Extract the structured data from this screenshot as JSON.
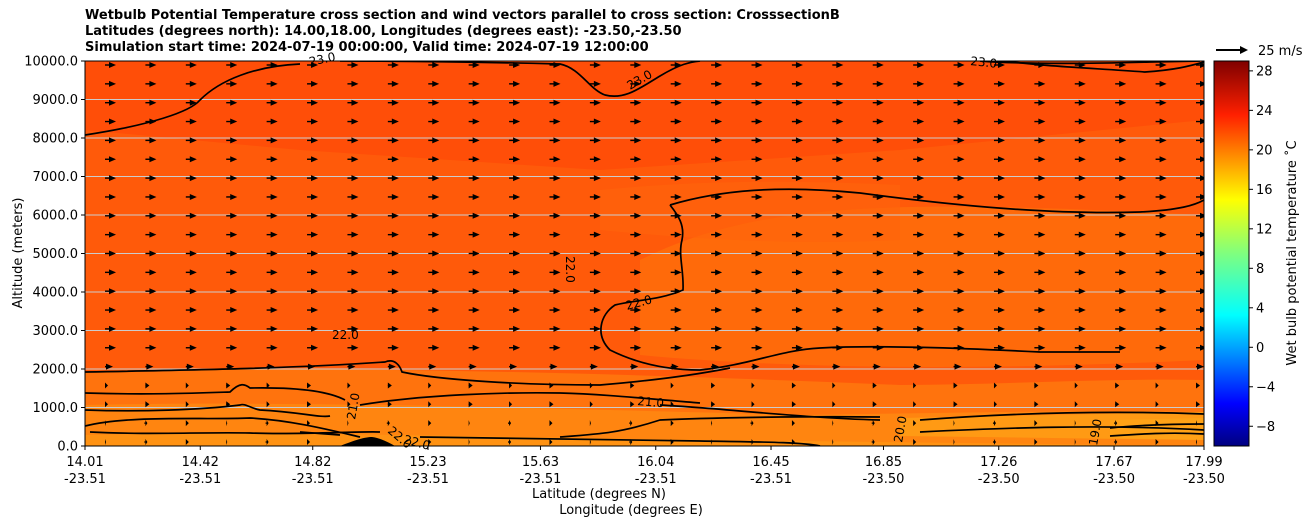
{
  "chart_data": {
    "type": "heatmap",
    "title_lines": [
      "Wetbulb Potential Temperature cross section and wind vectors parallel to cross section: CrosssectionB",
      "Latitudes (degrees north): 14.00,18.00, Longitudes (degrees east): -23.50,-23.50",
      "Simulation start time: 2024-07-19 00:00:00, Valid time: 2024-07-19 12:00:00"
    ],
    "ylabel": "Altitude (meters)",
    "xlabel_lat": "Latitude (degrees N)",
    "xlabel_lon": "Longitude (degrees E)",
    "ylim": [
      0,
      10000
    ],
    "yticks": [
      "0.0",
      "1000.0",
      "2000.0",
      "3000.0",
      "4000.0",
      "5000.0",
      "6000.0",
      "7000.0",
      "8000.0",
      "9000.0",
      "10000.0"
    ],
    "xticks_lat": [
      "14.01",
      "14.42",
      "14.82",
      "15.23",
      "15.63",
      "16.04",
      "16.45",
      "16.85",
      "17.26",
      "17.67",
      "17.99"
    ],
    "xticks_lon": [
      "-23.51",
      "-23.51",
      "-23.51",
      "-23.51",
      "-23.51",
      "-23.51",
      "-23.51",
      "-23.50",
      "-23.50",
      "-23.50",
      "-23.50"
    ],
    "grid": "horizontal",
    "colorbar": {
      "label": "Wet bulb potential temperature ˚C",
      "range": [
        -10,
        29
      ],
      "ticks": [
        "−8",
        "−4",
        "0",
        "4",
        "8",
        "12",
        "16",
        "20",
        "24",
        "28"
      ],
      "colormap": "jet"
    },
    "contour_labels": [
      "23.0",
      "23.0",
      "23.0",
      "22.0",
      "22.0",
      "22.0",
      "21.0",
      "21.0",
      "22.0",
      "22.0",
      "20.0",
      "19.0"
    ],
    "quiver_key": "25 m/s",
    "wind_direction": "toward higher latitude (rightward)"
  }
}
